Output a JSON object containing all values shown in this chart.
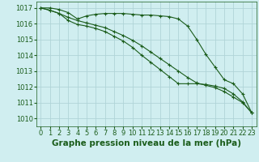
{
  "background_color": "#d0eef0",
  "plot_bg_color": "#d0eef0",
  "grid_color": "#b0d4d8",
  "line_color": "#1a5c1a",
  "marker_color": "#1a5c1a",
  "xlabel": "Graphe pression niveau de la mer (hPa)",
  "xlabel_color": "#1a5c1a",
  "xlabel_fontsize": 7.5,
  "tick_color": "#1a5c1a",
  "tick_fontsize": 6.0,
  "ylim": [
    1009.5,
    1017.4
  ],
  "xlim": [
    -0.5,
    23.5
  ],
  "yticks": [
    1010,
    1011,
    1012,
    1013,
    1014,
    1015,
    1016,
    1017
  ],
  "xticks": [
    0,
    1,
    2,
    3,
    4,
    5,
    6,
    7,
    8,
    9,
    10,
    11,
    12,
    13,
    14,
    15,
    16,
    17,
    18,
    19,
    20,
    21,
    22,
    23
  ],
  "series": [
    [
      1017.0,
      1017.0,
      1016.9,
      1016.7,
      1016.3,
      1016.5,
      1016.6,
      1016.65,
      1016.65,
      1016.65,
      1016.6,
      1016.55,
      1016.55,
      1016.5,
      1016.45,
      1016.3,
      1015.85,
      1015.0,
      1014.05,
      1013.25,
      1012.45,
      1012.2,
      1011.55,
      1010.35
    ],
    [
      1017.0,
      1016.85,
      1016.65,
      1016.2,
      1015.95,
      1015.85,
      1015.7,
      1015.5,
      1015.2,
      1014.9,
      1014.5,
      1014.0,
      1013.55,
      1013.1,
      1012.65,
      1012.2,
      1012.2,
      1012.2,
      1012.15,
      1012.05,
      1011.9,
      1011.55,
      1011.05,
      1010.35
    ],
    [
      1017.0,
      1016.85,
      1016.65,
      1016.4,
      1016.2,
      1016.05,
      1015.9,
      1015.75,
      1015.5,
      1015.25,
      1014.95,
      1014.6,
      1014.2,
      1013.8,
      1013.4,
      1013.0,
      1012.6,
      1012.25,
      1012.1,
      1011.95,
      1011.7,
      1011.35,
      1011.0,
      1010.35
    ]
  ]
}
